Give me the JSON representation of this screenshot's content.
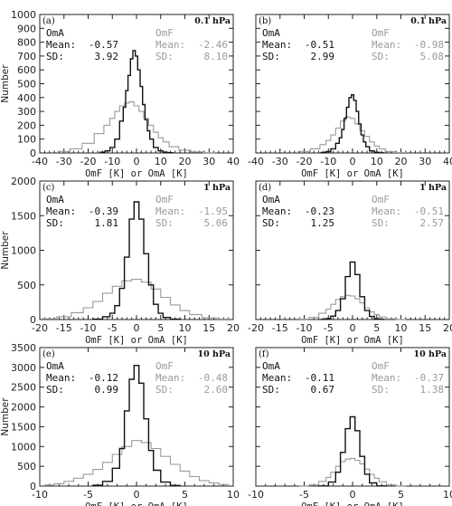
{
  "colors": {
    "omf": "#9a9a9a",
    "oma": "#111111",
    "axis": "#222222"
  },
  "chart_data": [
    {
      "type": "line",
      "panel": "(a)",
      "level": "0.1 hPa",
      "xlim": [
        -40,
        40
      ],
      "ylim": [
        0,
        1000
      ],
      "xticks": [
        "-40",
        "-30",
        "-20",
        "-10",
        "0",
        "10",
        "20",
        "30",
        "40"
      ],
      "yticks": [
        "0",
        "100",
        "200",
        "300",
        "400",
        "500",
        "600",
        "700",
        "800",
        "900",
        "1000"
      ],
      "xlabel": "OmF [K] or OmA [K]",
      "ylabel": "Number",
      "oma": {
        "name": "OmA",
        "mean_label": "Mean:",
        "mean": "-0.57",
        "sd_label": "SD:",
        "sd": "3.92"
      },
      "omf": {
        "name": "OmF",
        "mean_label": "Mean:",
        "mean": "-2.46",
        "sd_label": "SD:",
        "sd": "8.10"
      },
      "series": [
        {
          "name": "OmF",
          "x": [
            -30,
            -25,
            -20,
            -15,
            -12,
            -10,
            -8,
            -6,
            -4,
            -2,
            0,
            2,
            4,
            6,
            8,
            10,
            12,
            15,
            20,
            25,
            30
          ],
          "values": [
            10,
            30,
            70,
            140,
            200,
            250,
            300,
            340,
            360,
            370,
            340,
            300,
            250,
            200,
            150,
            110,
            80,
            45,
            20,
            8,
            2
          ]
        },
        {
          "name": "OmA",
          "x": [
            -14,
            -12,
            -10,
            -8,
            -6,
            -5,
            -4,
            -3,
            -2,
            -1,
            0,
            1,
            2,
            3,
            4,
            5,
            6,
            8,
            10,
            12,
            14
          ],
          "values": [
            5,
            15,
            40,
            100,
            230,
            330,
            450,
            560,
            680,
            740,
            700,
            600,
            480,
            350,
            240,
            160,
            100,
            40,
            15,
            5,
            2
          ]
        }
      ]
    },
    {
      "type": "line",
      "panel": "(b)",
      "level": "0.1 hPa",
      "xlim": [
        -40,
        40
      ],
      "ylim": [
        0,
        1000
      ],
      "xticks": [
        "-40",
        "-30",
        "-20",
        "-10",
        "0",
        "10",
        "20",
        "30",
        "40"
      ],
      "yticks": [],
      "xlabel": "OmF [K] or OmA [K]",
      "ylabel": "",
      "oma": {
        "name": "OmA",
        "mean_label": "Mean:",
        "mean": "-0.51",
        "sd_label": "SD:",
        "sd": "2.99"
      },
      "omf": {
        "name": "OmF",
        "mean_label": "Mean:",
        "mean": "-0.98",
        "sd_label": "SD:",
        "sd": "5.08"
      },
      "series": [
        {
          "name": "OmF",
          "x": [
            -20,
            -15,
            -12,
            -10,
            -8,
            -6,
            -4,
            -2,
            0,
            2,
            4,
            6,
            8,
            10,
            12,
            15,
            20
          ],
          "values": [
            10,
            30,
            60,
            90,
            130,
            180,
            230,
            260,
            250,
            210,
            160,
            120,
            80,
            50,
            30,
            10,
            3
          ]
        },
        {
          "name": "OmA",
          "x": [
            -12,
            -10,
            -8,
            -6,
            -5,
            -4,
            -3,
            -2,
            -1,
            0,
            1,
            2,
            3,
            4,
            5,
            6,
            8,
            10,
            12
          ],
          "values": [
            3,
            10,
            30,
            70,
            110,
            170,
            250,
            330,
            400,
            420,
            380,
            300,
            210,
            130,
            80,
            45,
            15,
            5,
            1
          ]
        }
      ]
    },
    {
      "type": "line",
      "panel": "(c)",
      "level": "1 hPa",
      "xlim": [
        -20,
        20
      ],
      "ylim": [
        0,
        2000
      ],
      "xticks": [
        "-20",
        "-15",
        "-10",
        "-5",
        "0",
        "5",
        "10",
        "15",
        "20"
      ],
      "yticks": [
        "0",
        "500",
        "1000",
        "1500",
        "2000"
      ],
      "xlabel": "OmF [K] or OmA [K]",
      "ylabel": "Number",
      "oma": {
        "name": "OmA",
        "mean_label": "Mean:",
        "mean": "-0.39",
        "sd_label": "SD:",
        "sd": "1.81"
      },
      "omf": {
        "name": "OmF",
        "mean_label": "Mean:",
        "mean": "-1.95",
        "sd_label": "SD:",
        "sd": "5.06"
      },
      "series": [
        {
          "name": "OmF",
          "x": [
            -18,
            -15,
            -12,
            -10,
            -8,
            -6,
            -4,
            -2,
            0,
            2,
            4,
            6,
            8,
            10,
            12,
            15,
            18
          ],
          "values": [
            10,
            40,
            100,
            170,
            260,
            380,
            480,
            560,
            580,
            540,
            440,
            320,
            210,
            130,
            70,
            25,
            8
          ]
        },
        {
          "name": "OmA",
          "x": [
            -8,
            -6,
            -5,
            -4,
            -3,
            -2,
            -1,
            0,
            1,
            2,
            3,
            4,
            5,
            6,
            8
          ],
          "values": [
            5,
            40,
            90,
            200,
            450,
            900,
            1450,
            1700,
            1450,
            950,
            500,
            220,
            90,
            30,
            5
          ]
        }
      ]
    },
    {
      "type": "line",
      "panel": "(d)",
      "level": "1 hPa",
      "xlim": [
        -20,
        20
      ],
      "ylim": [
        0,
        2000
      ],
      "xticks": [
        "-20",
        "-15",
        "-10",
        "-5",
        "0",
        "5",
        "10",
        "15",
        "20"
      ],
      "yticks": [],
      "xlabel": "OmF [K] or OmA [K]",
      "ylabel": "",
      "oma": {
        "name": "OmA",
        "mean_label": "Mean:",
        "mean": "-0.23",
        "sd_label": "SD:",
        "sd": "1.25"
      },
      "omf": {
        "name": "OmF",
        "mean_label": "Mean:",
        "mean": "-0.51",
        "sd_label": "SD:",
        "sd": "2.57"
      },
      "series": [
        {
          "name": "OmF",
          "x": [
            -10,
            -8,
            -6,
            -5,
            -4,
            -3,
            -2,
            -1,
            0,
            1,
            2,
            3,
            4,
            5,
            6,
            8,
            10
          ],
          "values": [
            5,
            30,
            90,
            150,
            220,
            290,
            330,
            350,
            340,
            300,
            240,
            170,
            110,
            70,
            35,
            10,
            2
          ]
        },
        {
          "name": "OmA",
          "x": [
            -6,
            -5,
            -4,
            -3,
            -2,
            -1,
            0,
            1,
            2,
            3,
            4,
            5,
            6
          ],
          "values": [
            2,
            15,
            50,
            130,
            300,
            620,
            830,
            650,
            330,
            130,
            45,
            12,
            2
          ]
        }
      ]
    },
    {
      "type": "line",
      "panel": "(e)",
      "level": "10 hPa",
      "xlim": [
        -10,
        10
      ],
      "ylim": [
        0,
        3500
      ],
      "xticks": [
        "-10",
        "-5",
        "0",
        "5",
        "10"
      ],
      "yticks": [
        "0",
        "500",
        "1000",
        "1500",
        "2000",
        "2500",
        "3000",
        "3500"
      ],
      "xlabel": "OmF [K] or OmA [K]",
      "ylabel": "Number",
      "oma": {
        "name": "OmA",
        "mean_label": "Mean:",
        "mean": "-0.12",
        "sd_label": "SD:",
        "sd": "0.99"
      },
      "omf": {
        "name": "OmF",
        "mean_label": "Mean:",
        "mean": "-0.48",
        "sd_label": "SD:",
        "sd": "2.60"
      },
      "series": [
        {
          "name": "OmF",
          "x": [
            -9,
            -8,
            -7,
            -6,
            -5,
            -4,
            -3,
            -2,
            -1,
            0,
            1,
            2,
            3,
            4,
            5,
            6,
            7,
            8,
            9
          ],
          "values": [
            30,
            60,
            120,
            200,
            300,
            420,
            600,
            800,
            1000,
            1150,
            1100,
            950,
            750,
            550,
            380,
            240,
            140,
            80,
            40
          ]
        },
        {
          "name": "OmA",
          "x": [
            -4,
            -3,
            -2,
            -1.5,
            -1,
            -0.5,
            0,
            0.5,
            1,
            1.5,
            2,
            3,
            4
          ],
          "values": [
            20,
            120,
            450,
            950,
            1900,
            2700,
            3050,
            2600,
            1700,
            900,
            400,
            100,
            15
          ]
        }
      ]
    },
    {
      "type": "line",
      "panel": "(f)",
      "level": "10 hPa",
      "xlim": [
        -10,
        10
      ],
      "ylim": [
        0,
        3500
      ],
      "xticks": [
        "-10",
        "-5",
        "0",
        "5",
        "10"
      ],
      "yticks": [],
      "xlabel": "OmF [K] or OmA [K]",
      "ylabel": "",
      "oma": {
        "name": "OmA",
        "mean_label": "Mean:",
        "mean": "-0.11",
        "sd_label": "SD:",
        "sd": "0.67"
      },
      "omf": {
        "name": "OmF",
        "mean_label": "Mean:",
        "mean": "-0.37",
        "sd_label": "SD:",
        "sd": "1.38"
      },
      "series": [
        {
          "name": "OmF",
          "x": [
            -5,
            -4,
            -3,
            -2.5,
            -2,
            -1.5,
            -1,
            -0.5,
            0,
            0.5,
            1,
            1.5,
            2,
            2.5,
            3,
            4,
            5
          ],
          "values": [
            5,
            30,
            120,
            220,
            350,
            500,
            620,
            680,
            700,
            650,
            560,
            430,
            300,
            200,
            110,
            30,
            5
          ]
        },
        {
          "name": "OmA",
          "x": [
            -3,
            -2,
            -1.5,
            -1,
            -0.5,
            0,
            0.5,
            1,
            1.5,
            2,
            3
          ],
          "values": [
            5,
            100,
            350,
            850,
            1450,
            1750,
            1400,
            750,
            300,
            80,
            5
          ]
        }
      ]
    }
  ]
}
